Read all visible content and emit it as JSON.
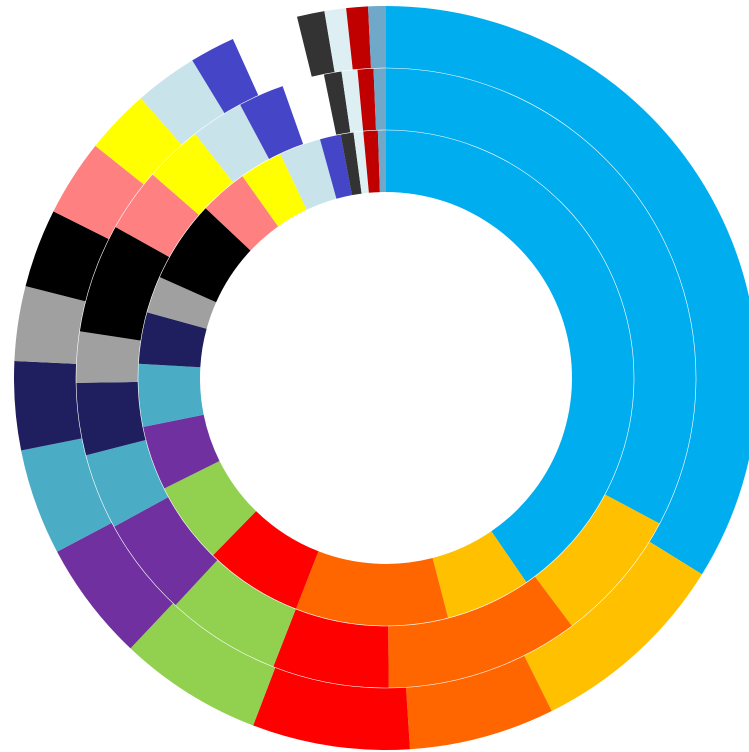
{
  "chart_data": {
    "type": "pie",
    "variant": "multi-ring donut",
    "title": "",
    "legend": "none",
    "data_labels": "none",
    "categories": [
      "sky-blue",
      "amber",
      "orange",
      "red",
      "lime-green",
      "purple",
      "teal",
      "navy",
      "gray",
      "black",
      "salmon",
      "yellow",
      "light-blue",
      "indigo",
      "dark-gray",
      "pale-blue",
      "dark-red",
      "steel-blue"
    ],
    "colors": [
      "#00AEEF",
      "#FFC000",
      "#FF6600",
      "#FF0000",
      "#92D050",
      "#7030A0",
      "#4BACC6",
      "#1F1F5F",
      "#A0A0A0",
      "#000000",
      "#FF8080",
      "#FFFF00",
      "#C8E4EA",
      "#4545C8",
      "#333333",
      "#DDEFF3",
      "#C00000",
      "#6FA8C8"
    ],
    "series": [
      {
        "ring": "inner",
        "values": [
          38.6,
          5.3,
          9.5,
          6.1,
          5.1,
          4.0,
          3.9,
          3.2,
          2.3,
          5.1,
          3.0,
          2.7,
          2.6,
          1.3,
          0.8,
          0.6,
          0.9,
          0.5
        ],
        "gaps": []
      },
      {
        "ring": "middle",
        "values": [
          35.7,
          7.6,
          11.0,
          6.6,
          6.5,
          5.6,
          4.3,
          4.1,
          2.9,
          6.2,
          3.6,
          3.3,
          3.0,
          2.6,
          1.0,
          0.9,
          0.9,
          0.7
        ],
        "gaps": [
          {
            "after": 13,
            "size": 2.4
          }
        ]
      },
      {
        "ring": "outer",
        "values": [
          39.6,
          10.3,
          7.4,
          8.0,
          7.3,
          6.1,
          5.4,
          4.5,
          3.8,
          4.0,
          3.9,
          3.3,
          3.2,
          2.3,
          1.4,
          1.1,
          1.1,
          0.9
        ],
        "gaps": [
          {
            "after": 13,
            "size": 3.4
          }
        ]
      }
    ]
  }
}
